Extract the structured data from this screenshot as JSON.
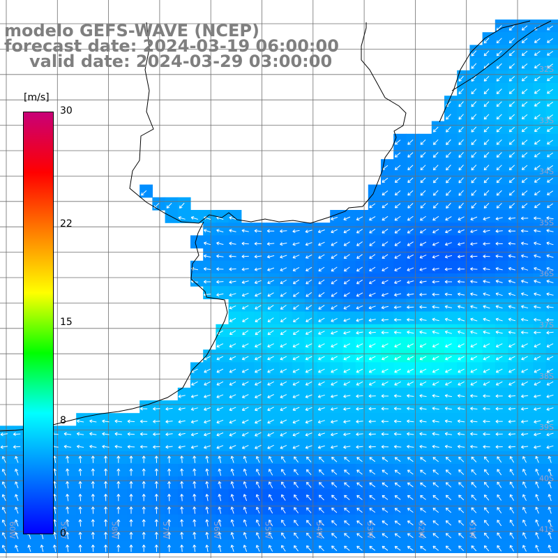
{
  "header": {
    "line1": "modelo GEFS-WAVE (NCEP)",
    "line2": "forecast date: 2024-03-19 06:00:00",
    "line3": "valid date: 2024-03-29 03:00:00"
  },
  "legend": {
    "unit": "[m/s]",
    "ticks": [
      {
        "label": "30",
        "value": 30
      },
      {
        "label": "22",
        "value": 22
      },
      {
        "label": "15",
        "value": 15
      },
      {
        "label": "8",
        "value": 8
      },
      {
        "label": "0",
        "value": 0
      }
    ],
    "colors": [
      "#0000ff",
      "#0080ff",
      "#00ffff",
      "#00ff00",
      "#ffff00",
      "#ff8000",
      "#ff0000",
      "#c80078"
    ]
  },
  "map": {
    "lat_labels": [
      "32S",
      "33S",
      "34S",
      "35S",
      "36S",
      "37S",
      "38S",
      "39S",
      "40S",
      "41S"
    ],
    "lon_labels": [
      "60W",
      "59W",
      "58W",
      "57W",
      "56W",
      "55W",
      "54W",
      "53W",
      "52W",
      "51W"
    ],
    "gridline_color": "#6e6e6e",
    "coastline_color": "#000000",
    "arrow_color": "#ffffff"
  }
}
